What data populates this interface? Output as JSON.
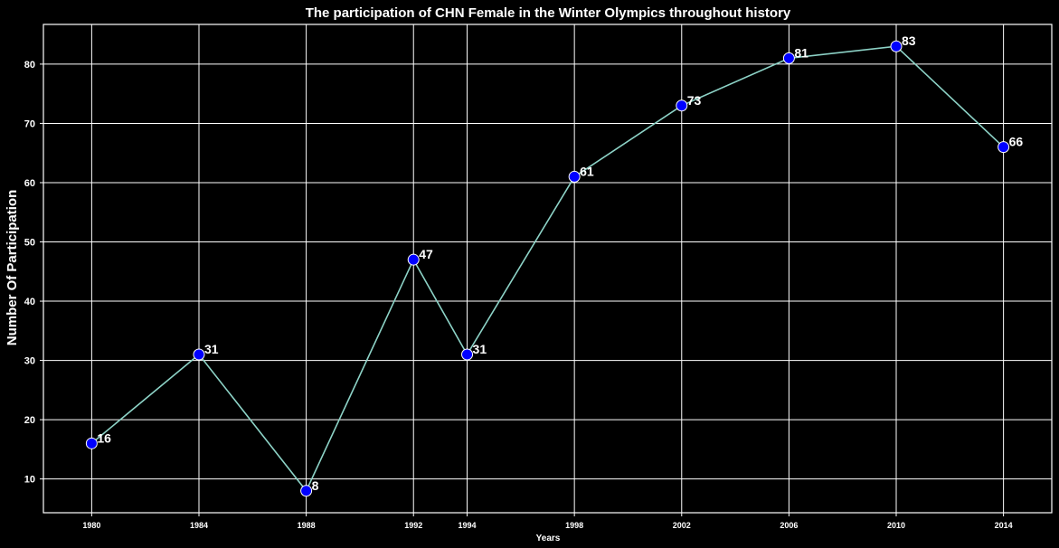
{
  "chart_data": {
    "type": "line",
    "title": "The participation of CHN Female in the Winter Olympics throughout history",
    "xlabel": "Years",
    "ylabel": "Number Of Participation",
    "x": [
      1980,
      1984,
      1988,
      1992,
      1994,
      1998,
      2002,
      2006,
      2010,
      2014
    ],
    "xtick_labels": [
      "1980",
      "1984",
      "1988",
      "1992",
      "1994",
      "1998",
      "2002",
      "2006",
      "2010",
      "2014"
    ],
    "series": [
      {
        "values": [
          16,
          31,
          8,
          47,
          31,
          61,
          73,
          81,
          83,
          66
        ]
      }
    ],
    "data_labels": [
      "16",
      "31",
      "8",
      "47",
      "31",
      "61",
      "73",
      "81",
      "83",
      "66"
    ],
    "yticks": [
      10,
      20,
      30,
      40,
      50,
      60,
      70,
      80
    ],
    "ytick_labels": [
      "10",
      "20",
      "30",
      "40",
      "50",
      "60",
      "70",
      "80"
    ],
    "ylim": [
      4.3,
      86.7
    ],
    "xlim": [
      1978.2,
      2015.8
    ],
    "grid": true,
    "colors": {
      "background": "#000000",
      "line": "#8dd3c7",
      "marker_fill": "#0000ff",
      "marker_edge": "#ffffff",
      "grid": "#ffffff",
      "text": "#ffffff"
    }
  }
}
